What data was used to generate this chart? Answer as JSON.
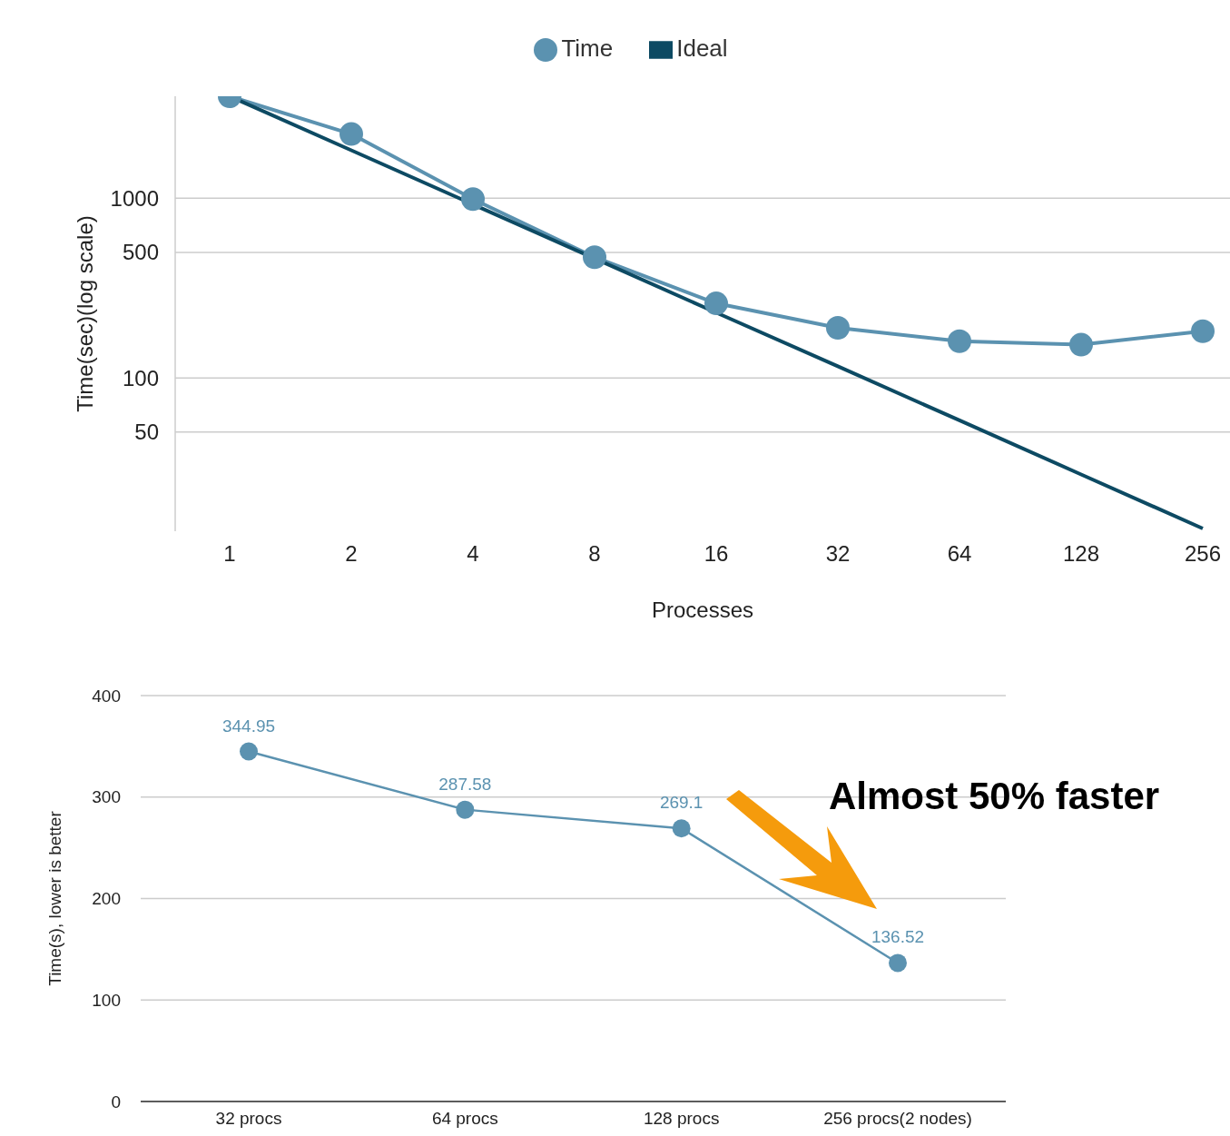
{
  "chart_data": [
    {
      "type": "line",
      "xlabel": "Processes",
      "ylabel": "Time(sec)(log scale)",
      "categories": [
        "1",
        "2",
        "4",
        "8",
        "16",
        "32",
        "64",
        "128",
        "256"
      ],
      "series": [
        {
          "name": "Time",
          "color": "#5b92b0",
          "marker": "circle",
          "values": [
            3700,
            2280,
            990,
            470,
            260,
            190,
            160,
            153,
            182
          ]
        },
        {
          "name": "Ideal",
          "color": "#0d4a63",
          "marker": "none",
          "values": [
            3700,
            1850,
            925,
            462,
            231,
            116,
            58,
            29,
            14.5
          ]
        }
      ],
      "log": "y",
      "ylim": [
        14,
        3700
      ],
      "yticks": [
        50,
        100,
        500,
        1000
      ],
      "grid": "y",
      "legend": "top"
    },
    {
      "type": "line",
      "ylabel": "Time(s), lower is better",
      "categories": [
        "32 procs",
        "64 procs",
        "128 procs",
        "256 procs(2 nodes)"
      ],
      "values": [
        344.95,
        287.58,
        269.1,
        136.52
      ],
      "color": "#5b92b0",
      "marker": "circle",
      "data_labels": true,
      "ylim": [
        0,
        400
      ],
      "yticks": [
        0,
        100,
        200,
        300,
        400
      ],
      "grid": "y",
      "annotations": [
        "Almost 50% faster"
      ]
    }
  ]
}
